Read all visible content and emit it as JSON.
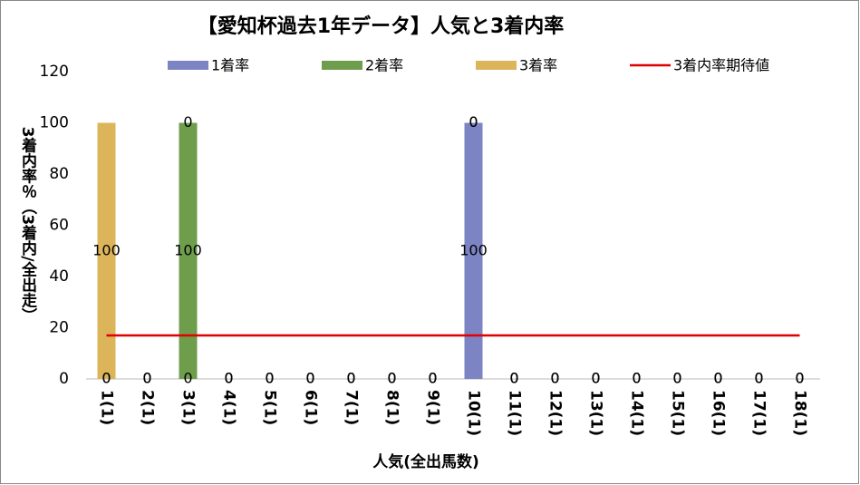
{
  "chart_data": {
    "type": "bar",
    "stacked": true,
    "title": "【愛知杯過去1年データ】人気と3着内率",
    "x_label": "人気(全出馬数)",
    "y_label": "3着内率％（3着内/全出走）",
    "categories": [
      "1(1)",
      "2(1)",
      "3(1)",
      "4(1)",
      "5(1)",
      "6(1)",
      "7(1)",
      "8(1)",
      "9(1)",
      "10(1)",
      "11(1)",
      "12(1)",
      "13(1)",
      "14(1)",
      "15(1)",
      "16(1)",
      "17(1)",
      "18(1)"
    ],
    "series": [
      {
        "name": "1着率",
        "color": "#7c84c4",
        "values": [
          0,
          0,
          0,
          0,
          0,
          0,
          0,
          0,
          0,
          100,
          0,
          0,
          0,
          0,
          0,
          0,
          0,
          0
        ]
      },
      {
        "name": "2着率",
        "color": "#6e9e4c",
        "values": [
          0,
          0,
          100,
          0,
          0,
          0,
          0,
          0,
          0,
          0,
          0,
          0,
          0,
          0,
          0,
          0,
          0,
          0
        ]
      },
      {
        "name": "3着率",
        "color": "#dcb45a",
        "values": [
          100,
          0,
          0,
          0,
          0,
          0,
          0,
          0,
          0,
          0,
          0,
          0,
          0,
          0,
          0,
          0,
          0,
          0
        ]
      },
      {
        "name": "3着内率期待値",
        "type": "line",
        "color": "#e00000",
        "values": [
          17,
          17,
          17,
          17,
          17,
          17,
          17,
          17,
          17,
          17,
          17,
          17,
          17,
          17,
          17,
          17,
          17,
          17
        ]
      }
    ],
    "ylim": [
      0,
      120
    ],
    "yticks": [
      0,
      20,
      40,
      60,
      80,
      100,
      120
    ],
    "grid": false
  }
}
